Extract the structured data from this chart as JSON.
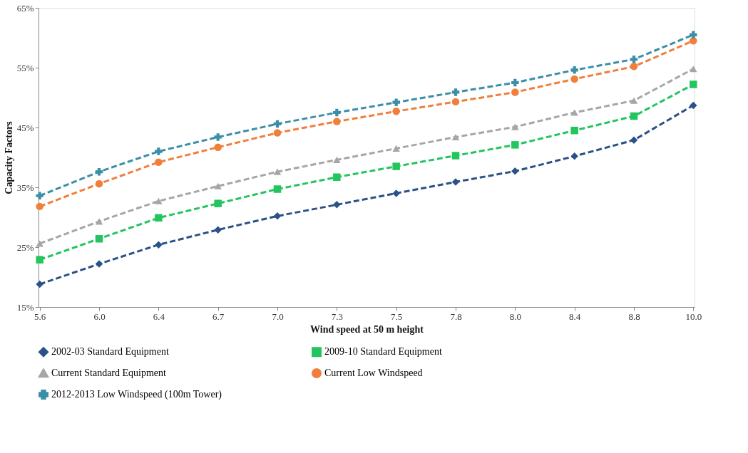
{
  "chart_data": {
    "type": "line",
    "xlabel": "Wind speed at 50 m height",
    "ylabel": "Capacity Factors",
    "categories": [
      "5.6",
      "6.0",
      "6.4",
      "6.7",
      "7.0",
      "7.3",
      "7.5",
      "7.8",
      "8.0",
      "8.4",
      "8.8",
      "10.0"
    ],
    "ylim": [
      15,
      65
    ],
    "yticks": [
      {
        "value": 15,
        "label": "15%"
      },
      {
        "value": 25,
        "label": "25%"
      },
      {
        "value": 35,
        "label": "35%"
      },
      {
        "value": 45,
        "label": "45%"
      },
      {
        "value": 55,
        "label": "55%"
      },
      {
        "value": 65,
        "label": "65%"
      }
    ],
    "grid": false,
    "legend": "bottom",
    "line_style": "dashed",
    "series": [
      {
        "name": "2002-03 Standard Equipment",
        "color": "#2a5287",
        "marker": "diamond",
        "values": [
          18.8,
          22.2,
          25.4,
          27.9,
          30.2,
          32.1,
          34.0,
          35.9,
          37.7,
          40.2,
          42.9,
          48.7
        ]
      },
      {
        "name": "2009-10 Standard Equipment",
        "color": "#22c55e",
        "marker": "square",
        "values": [
          22.9,
          26.4,
          29.9,
          32.3,
          34.7,
          36.7,
          38.5,
          40.3,
          42.1,
          44.5,
          46.9,
          52.2
        ]
      },
      {
        "name": "Current Standard Equipment",
        "color": "#a6a6a6",
        "marker": "triangle",
        "values": [
          25.6,
          29.3,
          32.7,
          35.2,
          37.6,
          39.6,
          41.5,
          43.4,
          45.1,
          47.5,
          49.5,
          54.8
        ]
      },
      {
        "name": "Current Low Windspeed",
        "color": "#f07f3c",
        "marker": "circle",
        "values": [
          31.8,
          35.6,
          39.2,
          41.7,
          44.1,
          46.0,
          47.7,
          49.3,
          50.9,
          53.1,
          55.2,
          59.5
        ]
      },
      {
        "name": "2012-2013 Low Windspeed (100m Tower)",
        "color": "#3a8ea8",
        "marker": "cross",
        "values": [
          33.6,
          37.6,
          41.0,
          43.4,
          45.6,
          47.5,
          49.2,
          50.9,
          52.5,
          54.6,
          56.4,
          60.5
        ]
      }
    ]
  }
}
